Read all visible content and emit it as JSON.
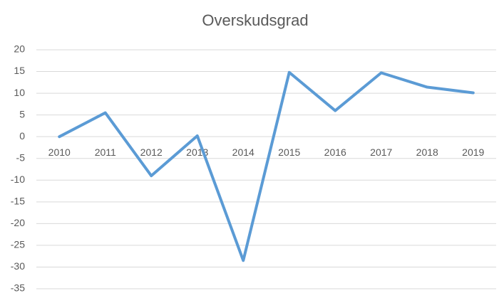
{
  "chart_data": {
    "type": "line",
    "title": "Overskudsgrad",
    "categories": [
      "2010",
      "2011",
      "2012",
      "2013",
      "2014",
      "2015",
      "2016",
      "2017",
      "2018",
      "2019"
    ],
    "values": [
      0,
      5.5,
      -9,
      0.2,
      -28.5,
      14.8,
      6,
      14.7,
      11.4,
      10.1
    ],
    "color": "#5b9bd5",
    "ylim": [
      -35,
      20
    ],
    "yticks": [
      -35,
      -30,
      -25,
      -20,
      -15,
      -10,
      -5,
      0,
      5,
      10,
      15,
      20
    ],
    "grid": true
  }
}
